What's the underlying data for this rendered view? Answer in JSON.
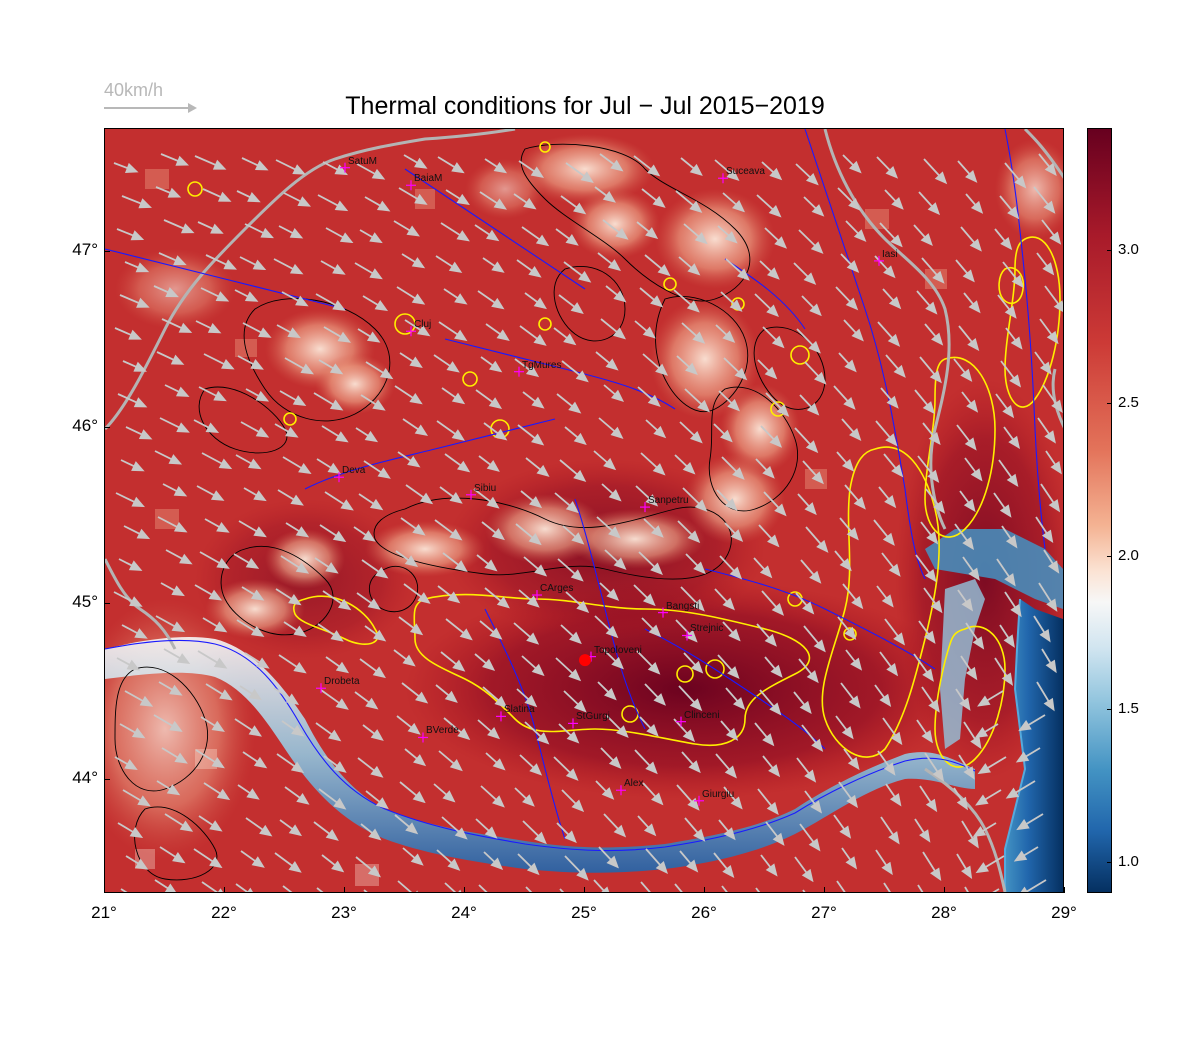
{
  "title": "Thermal conditions for Jul − Jul  2015−2019",
  "wind_legend": {
    "label": "40km/h"
  },
  "axes": {
    "x_ticks": [
      "21°",
      "22°",
      "23°",
      "24°",
      "25°",
      "26°",
      "27°",
      "28°",
      "29°"
    ],
    "y_ticks": [
      "47°",
      "46°",
      "45°",
      "44°"
    ]
  },
  "colorbar": {
    "ticks": [
      "3.0",
      "2.5",
      "2.0",
      "1.5",
      "1.0"
    ],
    "range": [
      0.9,
      3.4
    ],
    "palette": "RdBu_r"
  },
  "extent": {
    "lon": [
      21,
      29
    ],
    "lat": [
      43.35,
      47.7
    ]
  },
  "cities": [
    {
      "name": "SatuM",
      "lon": 23.0,
      "lat": 47.48
    },
    {
      "name": "BaiaM",
      "lon": 23.55,
      "lat": 47.38
    },
    {
      "name": "Suceava",
      "lon": 26.15,
      "lat": 47.42
    },
    {
      "name": "Iasi",
      "lon": 27.45,
      "lat": 46.95
    },
    {
      "name": "Cluj",
      "lon": 23.55,
      "lat": 46.55
    },
    {
      "name": "TgMures",
      "lon": 24.45,
      "lat": 46.32
    },
    {
      "name": "Deva",
      "lon": 22.95,
      "lat": 45.72
    },
    {
      "name": "Sibiu",
      "lon": 24.05,
      "lat": 45.62
    },
    {
      "name": "Sanpetru",
      "lon": 25.5,
      "lat": 45.55
    },
    {
      "name": "CArges",
      "lon": 24.6,
      "lat": 45.05
    },
    {
      "name": "Bangsti",
      "lon": 25.65,
      "lat": 44.95
    },
    {
      "name": "Strejnic",
      "lon": 25.85,
      "lat": 44.82
    },
    {
      "name": "Topoloveni",
      "lon": 25.05,
      "lat": 44.7
    },
    {
      "name": "Drobeta",
      "lon": 22.8,
      "lat": 44.52
    },
    {
      "name": "Slatina",
      "lon": 24.3,
      "lat": 44.36
    },
    {
      "name": "StGurgi",
      "lon": 24.9,
      "lat": 44.32
    },
    {
      "name": "Clinceni",
      "lon": 25.8,
      "lat": 44.33
    },
    {
      "name": "BVerde",
      "lon": 23.65,
      "lat": 44.24
    },
    {
      "name": "Alex",
      "lon": 25.3,
      "lat": 43.94
    },
    {
      "name": "Giurgiu",
      "lon": 25.95,
      "lat": 43.88
    }
  ],
  "marker": {
    "lon": 25.0,
    "lat": 44.68,
    "color": "#ff0000"
  },
  "colors": {
    "hot": "#a8121e",
    "cold": "#053061",
    "rivers": "#1a1aff",
    "borders": "#b4b4b4",
    "contour_high": "#ffff00",
    "contour_low": "#000000",
    "wind": "#c8c8c8"
  }
}
